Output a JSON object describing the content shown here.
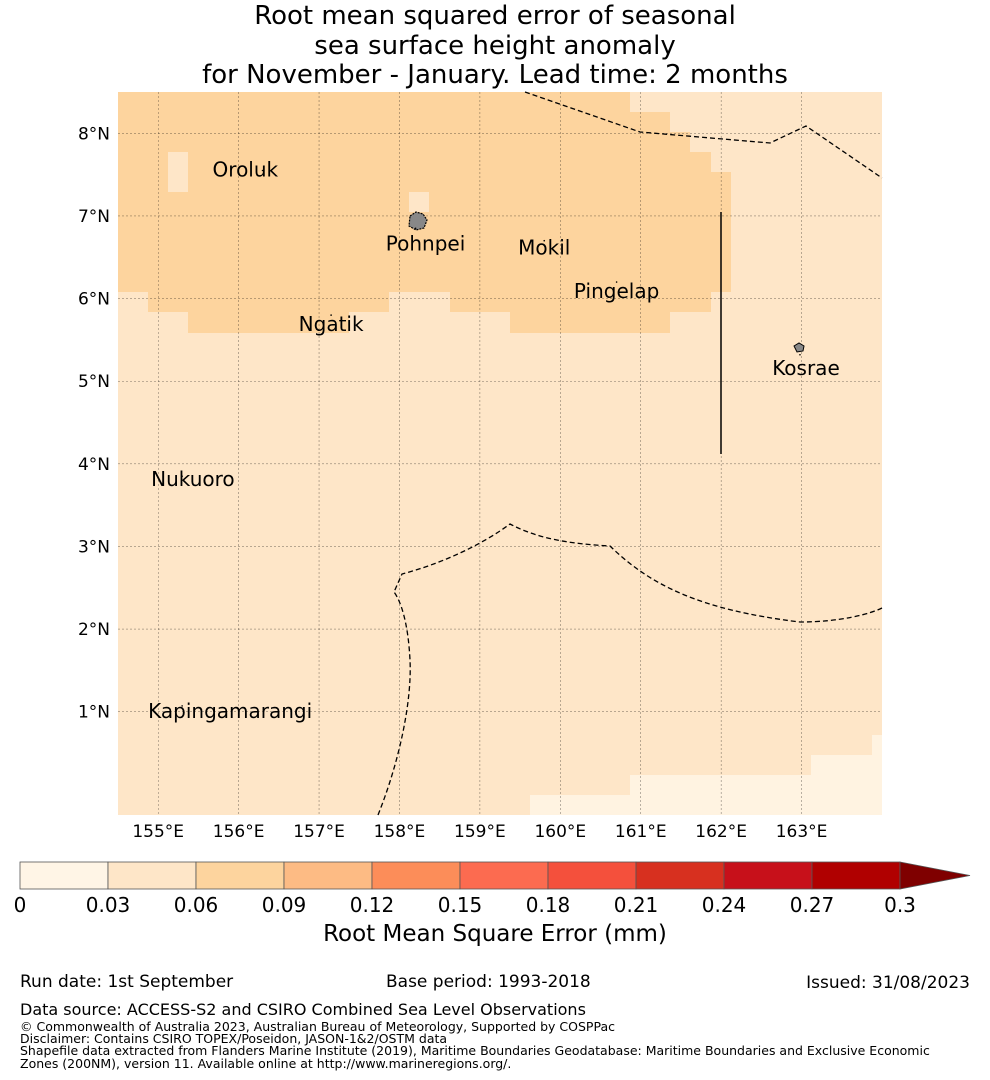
{
  "title": {
    "line1": "Root mean squared error of seasonal",
    "line2": "sea surface height anomaly",
    "line3": "for November - January. Lead time: 2 months"
  },
  "map": {
    "lon_range": [
      154.5,
      164.0
    ],
    "lat_range": [
      -0.25,
      8.5
    ],
    "lon_ticks": [
      {
        "value": 155,
        "label": "155°E"
      },
      {
        "value": 156,
        "label": "156°E"
      },
      {
        "value": 157,
        "label": "157°E"
      },
      {
        "value": 158,
        "label": "158°E"
      },
      {
        "value": 159,
        "label": "159°E"
      },
      {
        "value": 160,
        "label": "160°E"
      },
      {
        "value": 161,
        "label": "161°E"
      },
      {
        "value": 162,
        "label": "162°E"
      },
      {
        "value": 163,
        "label": "163°E"
      }
    ],
    "lat_ticks": [
      {
        "value": 8,
        "label": "8°N"
      },
      {
        "value": 7,
        "label": "7°N"
      },
      {
        "value": 6,
        "label": "6°N"
      },
      {
        "value": 5,
        "label": "5°N"
      },
      {
        "value": 4,
        "label": "4°N"
      },
      {
        "value": 3,
        "label": "3°N"
      },
      {
        "value": 2,
        "label": "2°N"
      },
      {
        "value": 1,
        "label": "1°N"
      }
    ],
    "field_colors": {
      "low": "#fff3e1",
      "mid": "#fee6c8",
      "high": "#fdd49e"
    },
    "places": [
      {
        "name": "Oroluk",
        "lon": 155.8,
        "lat": 7.55
      },
      {
        "name": "Pohnpei",
        "lon": 158.2,
        "lat": 6.85
      },
      {
        "name": "Mokil",
        "lon": 159.8,
        "lat": 6.7
      },
      {
        "name": "Pingelap",
        "lon": 160.7,
        "lat": 6.2
      },
      {
        "name": "Ngatik",
        "lon": 157.15,
        "lat": 5.8
      },
      {
        "name": "Kosrae",
        "lon": 162.98,
        "lat": 5.32
      },
      {
        "name": "Nukuoro",
        "lon": 154.8,
        "lat": 3.85
      },
      {
        "name": "Kapingamarangi",
        "lon": 154.8,
        "lat": 1.07
      }
    ]
  },
  "colorbar": {
    "label": "Root Mean Square Error (mm)",
    "ticks": [
      "0",
      "0.03",
      "0.06",
      "0.09",
      "0.12",
      "0.15",
      "0.18",
      "0.21",
      "0.24",
      "0.27",
      "0.3"
    ],
    "colors": [
      "#fff5e6",
      "#fee6c8",
      "#fdd49e",
      "#fdbb84",
      "#fc8d59",
      "#fc6b50",
      "#f4503c",
      "#d7301f",
      "#c7101a",
      "#b00000"
    ],
    "extend_color": "#7f0000"
  },
  "footer": {
    "run_date": "Run date: 1st September",
    "base_period": "Base period: 1993-2018",
    "issued": "Issued: 31/08/2023",
    "data_source": "Data source: ACCESS-S2 and CSIRO Combined Sea Level Observations",
    "copyright": "© Commonwealth of Australia 2023, Australian Bureau of Meteorology, Supported by COSPPac",
    "disclaimer": "Disclaimer: Contains CSIRO TOPEX/Poseidon, JASON-1&2/OSTM data",
    "shapefile": "Shapefile data extracted from Flanders Marine Institute (2019), Maritime Boundaries Geodatabase: Maritime Boundaries and Exclusive Economic Zones (200NM), version 11. Available online at http://www.marineregions.org/."
  }
}
